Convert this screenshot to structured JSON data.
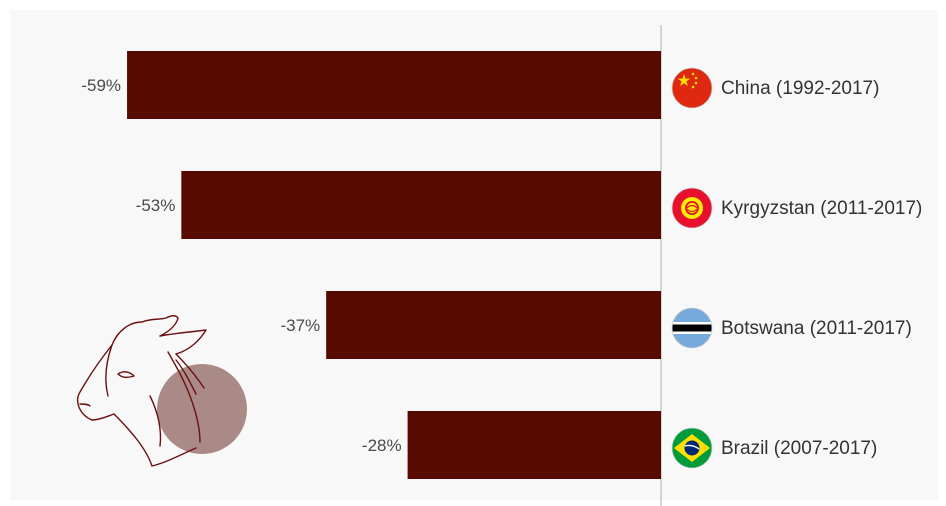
{
  "chart_data": {
    "type": "bar",
    "orientation": "horizontal",
    "categories": [
      "China (1992-2017)",
      "Kyrgyzstan (2011-2017)",
      "Botswana (2011-2017)",
      "Brazil (2007-2017)"
    ],
    "values": [
      -59,
      -53,
      -37,
      -28
    ],
    "value_labels": [
      "-59%",
      "-53%",
      "-37%",
      "-28%"
    ],
    "xlim": [
      -60,
      0
    ],
    "grid": false,
    "legend": "none",
    "bar_color": "#570a00",
    "axis_color": "#c8c8c8",
    "icons": [
      "china-flag-icon",
      "kyrgyzstan-flag-icon",
      "botswana-flag-icon",
      "brazil-flag-icon"
    ],
    "decoration": "donkey-illustration-icon"
  }
}
